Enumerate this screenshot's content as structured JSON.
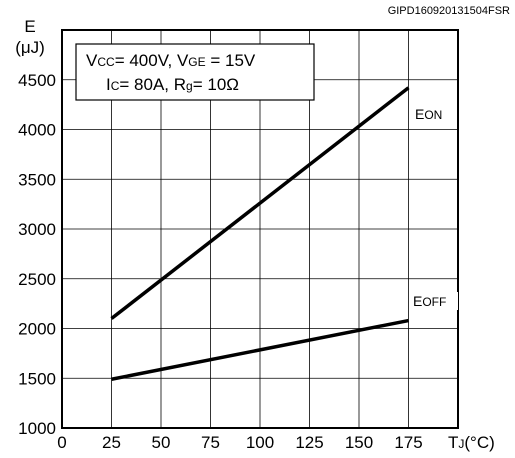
{
  "source_id": "GIPD160920131504FSR",
  "conditions": {
    "line1": {
      "vcc": "V",
      "vcc_sub": "CC",
      "vcc_val": "= 400V, ",
      "vge": "V",
      "vge_sub": "GE",
      "vge_val": " = 15V"
    },
    "line2": {
      "ic": "I",
      "ic_sub": "C",
      "ic_val": "= 80A, ",
      "rg": "R",
      "rg_sub": "g",
      "rg_val": "= 10Ω"
    }
  },
  "y_title": {
    "main": "E",
    "unit": "(μJ)"
  },
  "x_title": {
    "main": "T",
    "sub": "J",
    "unit": "(°C)"
  },
  "chart_data": {
    "type": "line",
    "xlim": [
      0,
      200
    ],
    "ylim": [
      1000,
      5000
    ],
    "x_ticks": [
      0,
      25,
      50,
      75,
      100,
      125,
      150,
      175
    ],
    "y_ticks": [
      1000,
      1500,
      2000,
      2500,
      3000,
      3500,
      4000,
      4500
    ],
    "grid": true,
    "series": [
      {
        "name": "EON",
        "label_main": "E",
        "label_sub": "ON",
        "x": [
          25,
          175
        ],
        "y": [
          2100,
          4420
        ],
        "color": "#000000"
      },
      {
        "name": "EOFF",
        "label_main": "E",
        "label_sub": "OFF",
        "x": [
          25,
          175
        ],
        "y": [
          1490,
          2080
        ],
        "color": "#000000"
      }
    ]
  }
}
